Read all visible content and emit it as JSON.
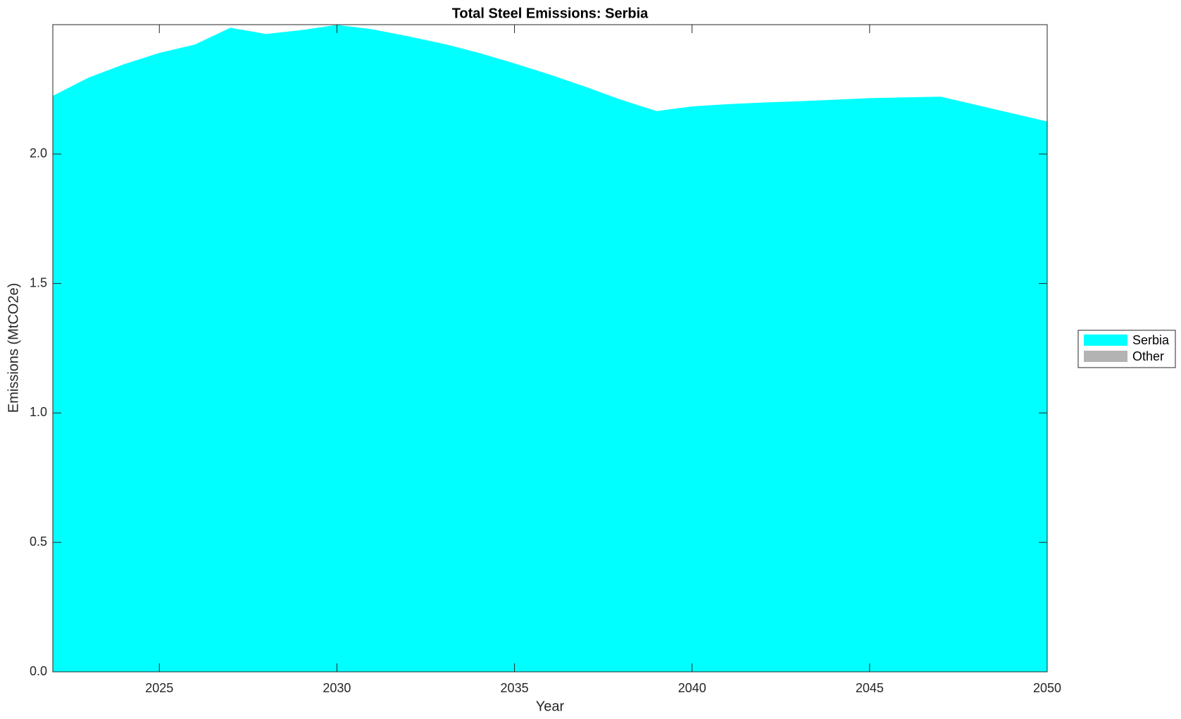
{
  "chart_data": {
    "type": "stacked_area",
    "title": "Total Steel Emissions: Serbia",
    "xlabel": "Year",
    "ylabel": "Emissions (MtCO2e)",
    "x": [
      2022,
      2023,
      2024,
      2025,
      2026,
      2027,
      2028,
      2029,
      2030,
      2031,
      2032,
      2033,
      2034,
      2035,
      2036,
      2037,
      2038,
      2039,
      2040,
      2041,
      2042,
      2043,
      2044,
      2045,
      2046,
      2047,
      2048,
      2049,
      2050
    ],
    "series": [
      {
        "name": "Serbia",
        "color": "#00ffff",
        "values": [
          2.225,
          2.295,
          2.347,
          2.391,
          2.423,
          2.488,
          2.464,
          2.479,
          2.499,
          2.482,
          2.455,
          2.426,
          2.391,
          2.35,
          2.307,
          2.26,
          2.21,
          2.166,
          2.184,
          2.193,
          2.199,
          2.204,
          2.21,
          2.216,
          2.219,
          2.222,
          2.19,
          2.158,
          2.126
        ]
      },
      {
        "name": "Other",
        "color": "#b3b3b3",
        "values": [
          0,
          0,
          0,
          0,
          0,
          0,
          0,
          0,
          0,
          0,
          0,
          0,
          0,
          0,
          0,
          0,
          0,
          0,
          0,
          0,
          0,
          0,
          0,
          0,
          0,
          0,
          0,
          0,
          0
        ]
      }
    ],
    "xlim": [
      2022,
      2050
    ],
    "xticks": [
      2025,
      2030,
      2035,
      2040,
      2045,
      2050
    ],
    "ylim": [
      0,
      2.5
    ],
    "yticks": [
      {
        "value": 0,
        "label": "0.0"
      },
      0.5,
      {
        "value": 1,
        "label": "1.0"
      },
      1.5,
      {
        "value": 2,
        "label": "2.0"
      }
    ],
    "legend": "right"
  }
}
